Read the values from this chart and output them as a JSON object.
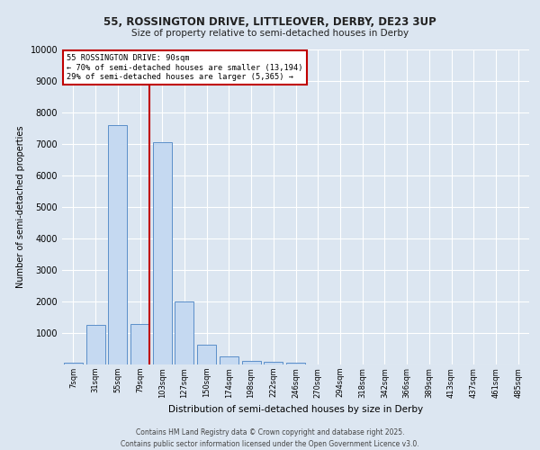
{
  "title_line1": "55, ROSSINGTON DRIVE, LITTLEOVER, DERBY, DE23 3UP",
  "title_line2": "Size of property relative to semi-detached houses in Derby",
  "xlabel": "Distribution of semi-detached houses by size in Derby",
  "ylabel": "Number of semi-detached properties",
  "categories": [
    "7sqm",
    "31sqm",
    "55sqm",
    "79sqm",
    "103sqm",
    "127sqm",
    "150sqm",
    "174sqm",
    "198sqm",
    "222sqm",
    "246sqm",
    "270sqm",
    "294sqm",
    "318sqm",
    "342sqm",
    "366sqm",
    "389sqm",
    "413sqm",
    "437sqm",
    "461sqm",
    "485sqm"
  ],
  "values": [
    50,
    1250,
    7600,
    1300,
    7050,
    2000,
    620,
    270,
    120,
    90,
    70,
    0,
    0,
    0,
    0,
    0,
    0,
    0,
    0,
    0,
    0
  ],
  "bar_color": "#c5d9f1",
  "bar_edge_color": "#5b8fc9",
  "vline_color": "#c00000",
  "vline_x_index": 3,
  "annotation_title": "55 ROSSINGTON DRIVE: 90sqm",
  "annotation_line2": "← 70% of semi-detached houses are smaller (13,194)",
  "annotation_line3": "29% of semi-detached houses are larger (5,365) →",
  "annotation_box_color": "#c00000",
  "annotation_bg": "#ffffff",
  "ylim": [
    0,
    10000
  ],
  "yticks": [
    0,
    1000,
    2000,
    3000,
    4000,
    5000,
    6000,
    7000,
    8000,
    9000,
    10000
  ],
  "bg_color": "#dce6f1",
  "grid_color": "#ffffff",
  "footer_line1": "Contains HM Land Registry data © Crown copyright and database right 2025.",
  "footer_line2": "Contains public sector information licensed under the Open Government Licence v3.0."
}
